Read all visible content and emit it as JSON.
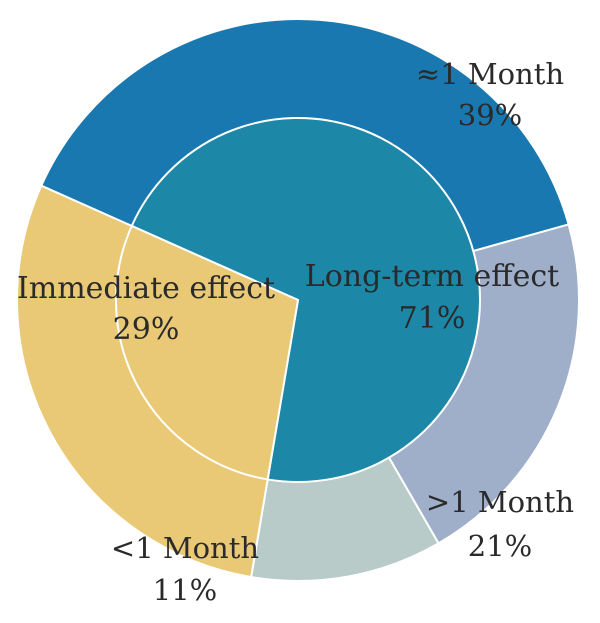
{
  "chart_data": {
    "type": "pie",
    "inner": [
      {
        "label": "Immediate effect",
        "value_label": "29%",
        "value": 29,
        "color": "#e9c975"
      },
      {
        "label": "Long-term effect",
        "value_label": "71%",
        "value": 71,
        "color": "#1d87a8"
      }
    ],
    "outer": [
      {
        "label": "≈1 Month",
        "value_label": "39%",
        "value": 39,
        "color": "#1a78b0"
      },
      {
        "label": ">1 Month",
        "value_label": "21%",
        "value": 21,
        "color": "#9faec9"
      },
      {
        "label": "<1 Month",
        "value_label": "11%",
        "value": 11,
        "color": "#b9cbc9"
      },
      {
        "label": "Immediate effect",
        "value_label": "29%",
        "value": 29,
        "color": "#e9c975"
      }
    ]
  }
}
